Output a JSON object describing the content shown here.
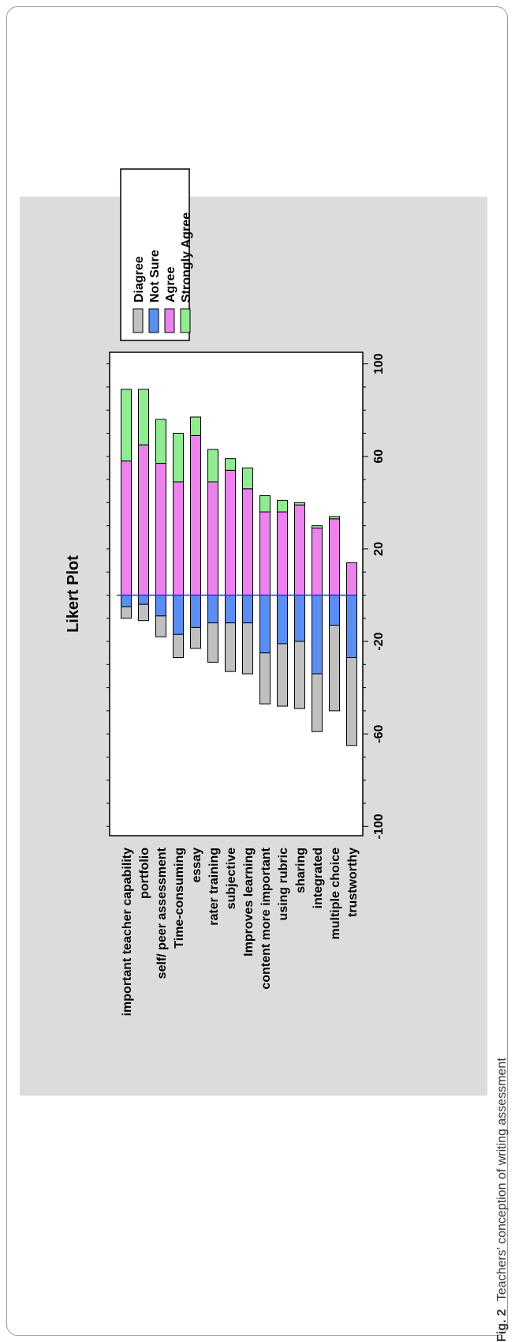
{
  "figure": {
    "caption_label": "Fig. 2",
    "caption_text": "Teachers’ conception of writing assessment"
  },
  "chart_data": {
    "type": "bar",
    "subtype": "diverging-stacked-likert",
    "orientation": "rotated-90",
    "title": "Likert Plot",
    "xlabel": "",
    "ylabel": "",
    "categories": [
      "important teacher capability",
      "portfolio",
      "self/ peer assessment",
      "Time-consuming",
      "essay",
      "rater training",
      "subjective",
      "Improves learning",
      "content more important",
      "using rubric",
      "sharing",
      "integrated",
      "multiple choice",
      "trustworthy"
    ],
    "series": [
      {
        "name": "Diagree",
        "side": "negative",
        "color": "#c0c0c0",
        "values": [
          5,
          7,
          9,
          10,
          9,
          17,
          21,
          22,
          22,
          27,
          29,
          25,
          37,
          38
        ]
      },
      {
        "name": "Not Sure",
        "side": "negative",
        "color": "#5a8ef2",
        "values": [
          5,
          4,
          9,
          17,
          14,
          12,
          12,
          12,
          25,
          21,
          20,
          34,
          13,
          27
        ]
      },
      {
        "name": "Agree",
        "side": "positive",
        "color": "#ec82ec",
        "values": [
          58,
          65,
          57,
          49,
          69,
          49,
          54,
          46,
          36,
          36,
          39,
          29,
          33,
          14
        ]
      },
      {
        "name": "Strongly Agree",
        "side": "positive",
        "color": "#90ec90",
        "values": [
          31,
          24,
          19,
          21,
          8,
          14,
          5,
          9,
          7,
          5,
          1,
          1,
          1,
          0
        ]
      }
    ],
    "value_axis": {
      "ticks": [
        -100,
        -60,
        -20,
        20,
        60,
        100
      ],
      "range": [
        -104,
        105
      ]
    },
    "legend": {
      "position": "top-right",
      "entries": [
        "Diagree",
        "Not Sure",
        "Agree",
        "Strongly Agree"
      ]
    },
    "zero_line_color": "#3030ff",
    "panel_background": "#dcdcdc",
    "grid": false
  }
}
